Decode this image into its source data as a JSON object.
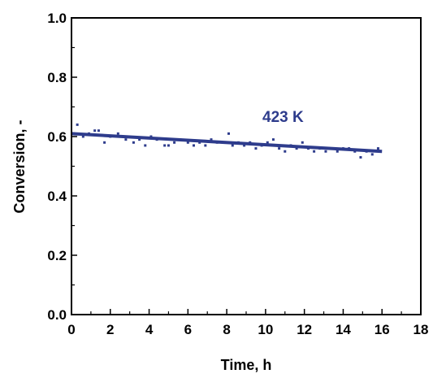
{
  "chart_data": {
    "type": "scatter",
    "xlabel": "Time, h",
    "ylabel": "Conversion, -",
    "xlim": [
      0,
      18
    ],
    "ylim": [
      0.0,
      1.0
    ],
    "x_ticks": [
      "0",
      "2",
      "4",
      "6",
      "8",
      "10",
      "12",
      "14",
      "16",
      "18"
    ],
    "y_ticks": [
      "0.0",
      "0.2",
      "0.4",
      "0.6",
      "0.8",
      "1.0"
    ],
    "grid": false,
    "annotation": "423 K",
    "colors": {
      "series": "#2E3C8C",
      "axes": "#000000"
    },
    "series": [
      {
        "type": "scatter",
        "x": [
          0.1,
          0.3,
          0.6,
          0.9,
          1.2,
          1.4,
          1.7,
          2.0,
          2.4,
          2.8,
          3.2,
          3.5,
          3.8,
          4.1,
          4.4,
          4.8,
          5.0,
          5.3,
          5.6,
          6.0,
          6.3,
          6.6,
          6.9,
          7.2,
          7.5,
          7.8,
          8.1,
          8.3,
          8.6,
          8.9,
          9.2,
          9.5,
          9.8,
          10.1,
          10.4,
          10.7,
          11.0,
          11.3,
          11.6,
          11.9,
          12.2,
          12.5,
          12.8,
          13.1,
          13.4,
          13.7,
          14.0,
          14.3,
          14.6,
          14.9,
          15.2,
          15.5,
          15.8
        ],
        "y": [
          0.61,
          0.64,
          0.6,
          0.61,
          0.62,
          0.62,
          0.58,
          0.6,
          0.61,
          0.59,
          0.58,
          0.59,
          0.57,
          0.6,
          0.59,
          0.57,
          0.57,
          0.58,
          0.59,
          0.58,
          0.57,
          0.58,
          0.57,
          0.59,
          0.58,
          0.58,
          0.61,
          0.57,
          0.58,
          0.57,
          0.58,
          0.56,
          0.57,
          0.58,
          0.59,
          0.56,
          0.55,
          0.57,
          0.56,
          0.58,
          0.56,
          0.55,
          0.56,
          0.55,
          0.56,
          0.55,
          0.56,
          0.56,
          0.55,
          0.53,
          0.55,
          0.54,
          0.56
        ]
      },
      {
        "type": "line",
        "x": [
          0,
          16
        ],
        "y": [
          0.61,
          0.55
        ]
      }
    ]
  }
}
